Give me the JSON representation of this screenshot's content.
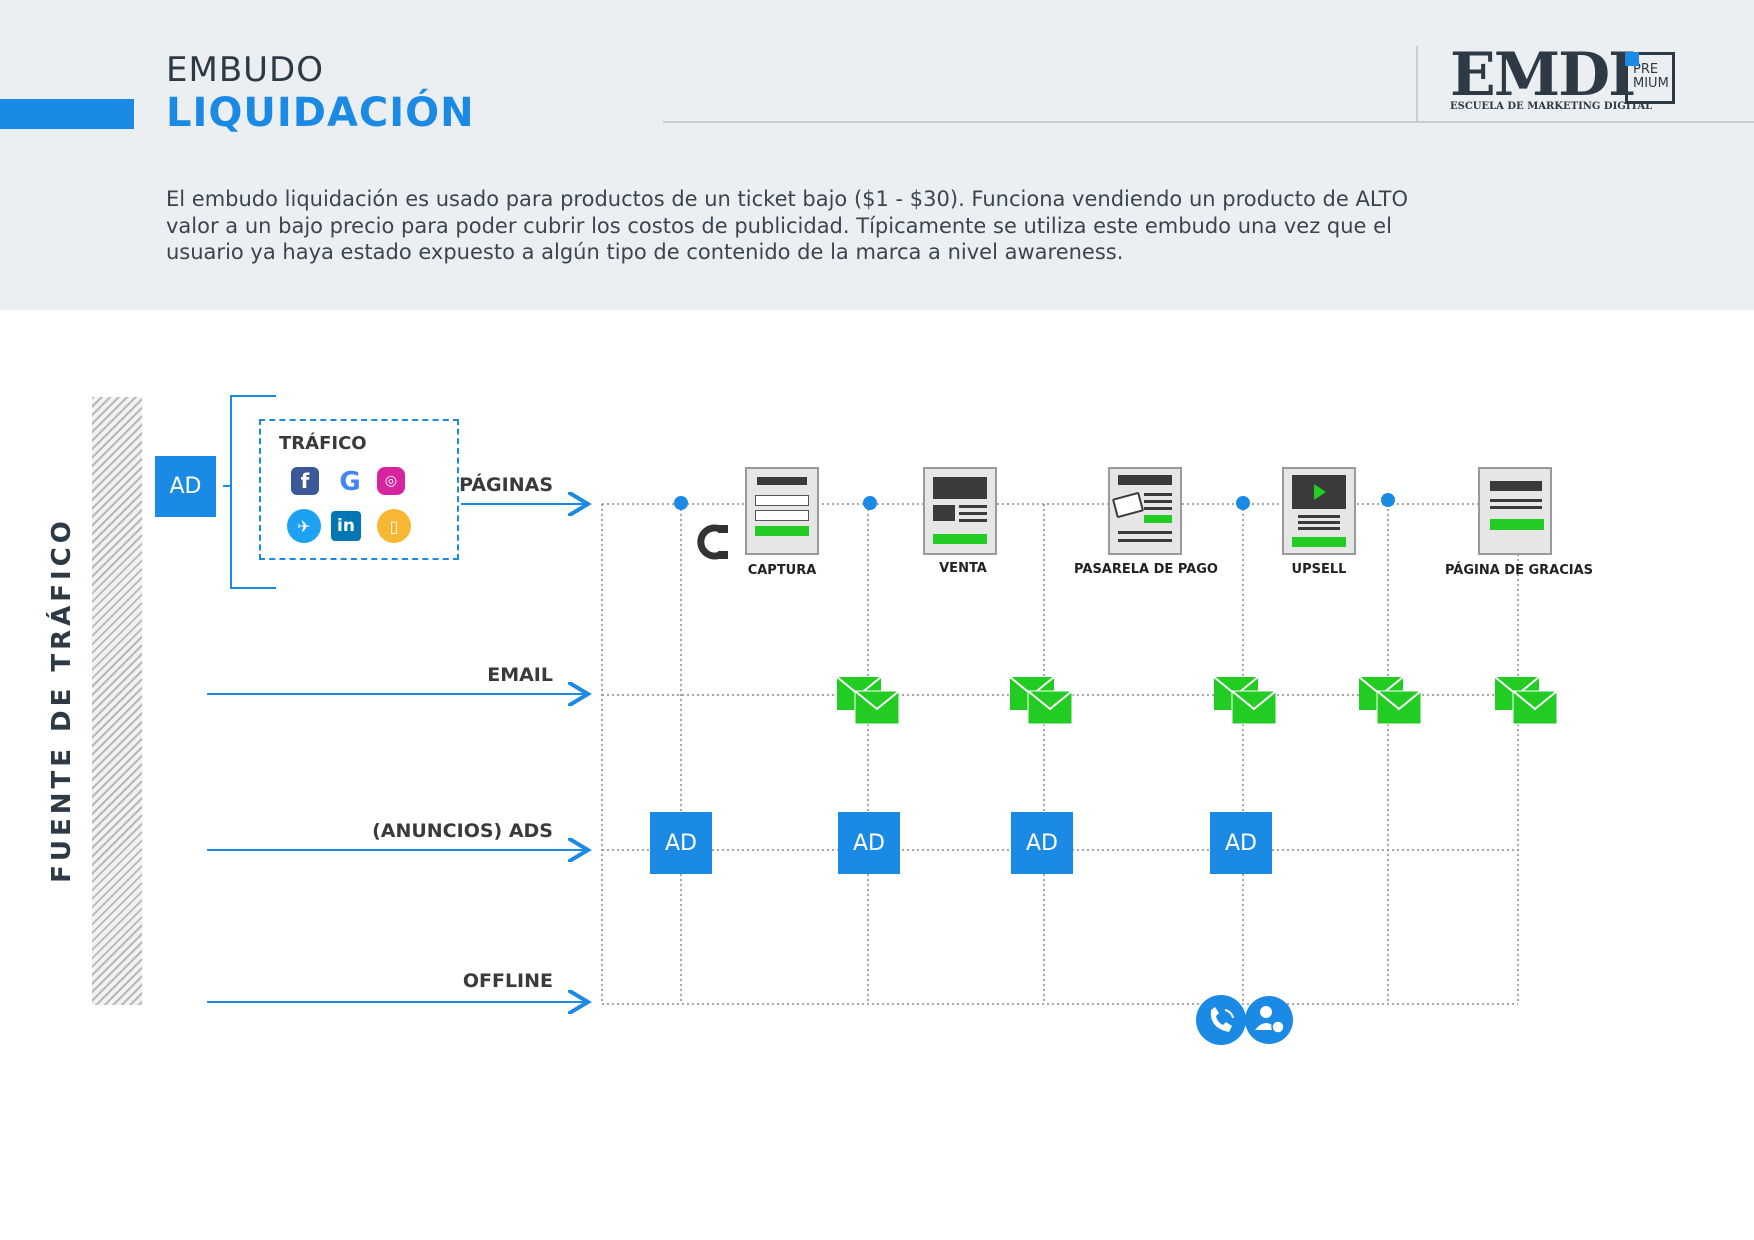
{
  "header": {
    "title_line1": "EMBUDO",
    "title_line2": "LIQUIDACIÓN",
    "description": "El embudo liquidación es usado para productos de un ticket bajo ($1 - $30). Funciona vendiendo un producto de ALTO valor a un bajo precio para poder cubrir los costos de publicidad. Típicamente se utiliza este embudo una vez que el usuario ya haya estado expuesto a algún tipo de contenido de la marca a nivel awareness."
  },
  "logo": {
    "text": "EMDI",
    "subtitle": "ESCUELA DE MARKETING DIGITAL",
    "badge_line1": "PRE",
    "badge_line2": "MIUM"
  },
  "diagram": {
    "side_label": "FUENTE DE TRÁFICO",
    "ad_label": "AD",
    "traffic_title": "TRÁFICO",
    "traffic_icons": [
      "facebook-icon",
      "google-icon",
      "instagram-icon",
      "twitter-icon",
      "linkedin-icon",
      "mobile-icon"
    ],
    "rows": {
      "pages": "PÁGINAS",
      "email": "EMAIL",
      "ads": "(ANUNCIOS) ADS",
      "offline": "OFFLINE"
    },
    "pages": [
      "CAPTURA",
      "VENTA",
      "PASARELA DE PAGO",
      "UPSELL",
      "PÁGINA DE GRACIAS"
    ],
    "offline_icons": [
      "phone-icon",
      "user-check-icon"
    ],
    "colors": {
      "blue": "#1a8ae5",
      "green": "#22cc22",
      "dark": "#2d3a45"
    }
  }
}
